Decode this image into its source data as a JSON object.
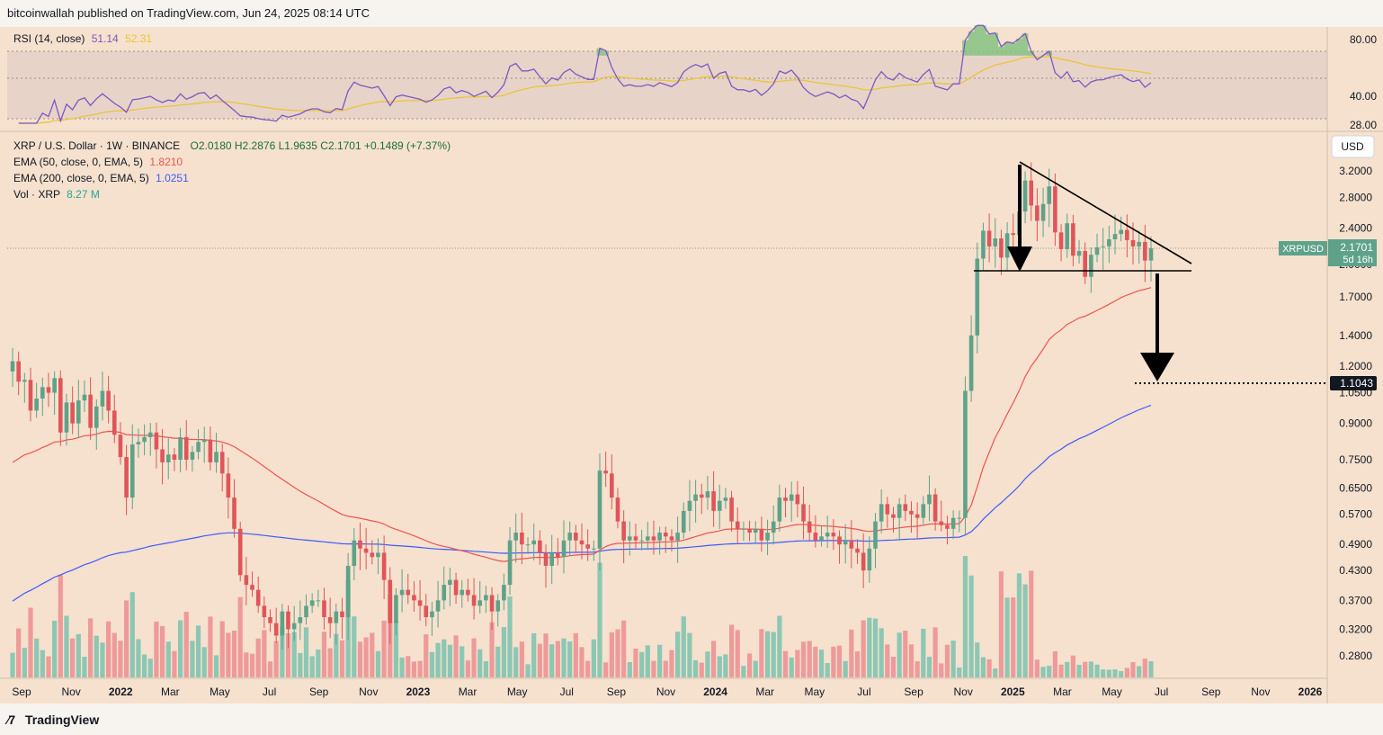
{
  "header": {
    "published": "bitcoinwallah published on TradingView.com, Jun 24, 2025 08:14 UTC"
  },
  "footer": {
    "brand": "TradingView"
  },
  "rsi_panel": {
    "label": "RSI (14, close)",
    "rsi_value": "51.14",
    "ma_value": "52.31",
    "ticks": [
      "80.00",
      "40.00",
      "28.00"
    ],
    "colors": {
      "rsi": "#7e57c2",
      "ma": "#e8c53a",
      "band": "#e6d2c8",
      "overbought_fill": "#7ec27e"
    }
  },
  "main_legend": {
    "symbol": "XRP / U.S. Dollar · 1W · BINANCE",
    "ohlc": "O2.0180  H2.2876  L1.9635  C2.1701  +0.1489 (+7.37%)",
    "ema50_label": "EMA (50, close, 0, EMA, 5)",
    "ema50_value": "1.8210",
    "ema200_label": "EMA (200, close, 0, EMA, 5)",
    "ema200_value": "1.0251",
    "vol_label": "Vol · XRP",
    "vol_value": "8.27 M"
  },
  "price_axis": {
    "currency_button": "USD",
    "ticks": [
      "3.2000",
      "2.8000",
      "2.4000",
      "2.0000",
      "1.7000",
      "1.4000",
      "1.2000",
      "1.0500",
      "0.9000",
      "0.7500",
      "0.6500",
      "0.5700",
      "0.4900",
      "0.4300",
      "0.3700",
      "0.3200",
      "0.2800"
    ],
    "symbol_badge": "XRPUSD",
    "last_price": "2.1701",
    "countdown": "5d 16h",
    "target_label": "1.1043"
  },
  "time_axis": {
    "labels": [
      "Sep",
      "Nov",
      "2022",
      "Mar",
      "May",
      "Jul",
      "Sep",
      "Nov",
      "2023",
      "Mar",
      "May",
      "Jul",
      "Sep",
      "Nov",
      "2024",
      "Mar",
      "May",
      "Jul",
      "Sep",
      "Nov",
      "2025",
      "Mar",
      "May",
      "Jul",
      "Sep",
      "Nov",
      "2026"
    ],
    "bold": [
      "2022",
      "2023",
      "2024",
      "2025",
      "2026"
    ]
  },
  "chart_data": {
    "type": "candlestick",
    "y_scale": "log",
    "ylim": [
      0.255,
      3.6
    ],
    "x_range": [
      "2021-08-16",
      "2026-02-07"
    ],
    "annotation": {
      "pattern": "descending triangle",
      "resistance_line": [
        [
          "2024-12-02",
          3.3
        ],
        [
          "2025-08-18",
          1.92
        ]
      ],
      "support_line": [
        [
          "2024-11-18",
          1.92
        ],
        [
          "2025-08-18",
          1.92
        ]
      ],
      "target": 1.1043
    },
    "colors": {
      "up": "#5ea28a",
      "down": "#e0555a",
      "ema50": "#ef5350",
      "ema200": "#3d5afe",
      "vol_up": "#8cc7b4",
      "vol_down": "#ef9a9a"
    },
    "weekly_close": [
      1.23,
      1.11,
      1.12,
      0.96,
      1.02,
      1.08,
      1.05,
      1.13,
      0.86,
      1.0,
      0.9,
      1.01,
      1.04,
      0.88,
      0.98,
      1.06,
      0.96,
      0.85,
      0.76,
      0.62,
      0.81,
      0.82,
      0.84,
      0.86,
      0.79,
      0.74,
      0.77,
      0.75,
      0.84,
      0.75,
      0.78,
      0.82,
      0.83,
      0.74,
      0.78,
      0.7,
      0.62,
      0.53,
      0.42,
      0.4,
      0.39,
      0.36,
      0.34,
      0.33,
      0.31,
      0.35,
      0.32,
      0.33,
      0.34,
      0.36,
      0.37,
      0.37,
      0.34,
      0.33,
      0.35,
      0.34,
      0.44,
      0.5,
      0.48,
      0.47,
      0.46,
      0.47,
      0.41,
      0.33,
      0.38,
      0.39,
      0.38,
      0.37,
      0.36,
      0.34,
      0.35,
      0.37,
      0.4,
      0.41,
      0.38,
      0.39,
      0.38,
      0.36,
      0.37,
      0.38,
      0.35,
      0.37,
      0.4,
      0.5,
      0.52,
      0.49,
      0.49,
      0.5,
      0.47,
      0.44,
      0.47,
      0.46,
      0.5,
      0.52,
      0.5,
      0.49,
      0.48,
      0.48,
      0.71,
      0.7,
      0.62,
      0.55,
      0.5,
      0.51,
      0.5,
      0.5,
      0.51,
      0.5,
      0.52,
      0.51,
      0.5,
      0.52,
      0.58,
      0.61,
      0.63,
      0.62,
      0.64,
      0.58,
      0.61,
      0.62,
      0.55,
      0.53,
      0.53,
      0.52,
      0.53,
      0.5,
      0.52,
      0.55,
      0.62,
      0.61,
      0.63,
      0.6,
      0.55,
      0.52,
      0.5,
      0.51,
      0.52,
      0.51,
      0.49,
      0.5,
      0.48,
      0.47,
      0.43,
      0.48,
      0.55,
      0.6,
      0.57,
      0.56,
      0.6,
      0.58,
      0.57,
      0.56,
      0.6,
      0.63,
      0.55,
      0.54,
      0.53,
      0.56,
      0.56,
      1.06,
      1.4,
      2.06,
      2.37,
      2.19,
      2.28,
      2.07,
      2.34,
      2.32,
      2.61,
      3.05,
      2.69,
      2.49,
      2.71,
      2.96,
      2.35,
      2.16,
      2.46,
      2.09,
      2.14,
      1.88,
      2.1,
      2.18,
      2.19,
      2.27,
      2.33,
      2.38,
      2.26,
      2.19,
      2.24,
      2.04,
      2.17
    ],
    "ema50_end": 1.821,
    "ema200_end": 1.0251,
    "last_volume": "8.27 M"
  }
}
